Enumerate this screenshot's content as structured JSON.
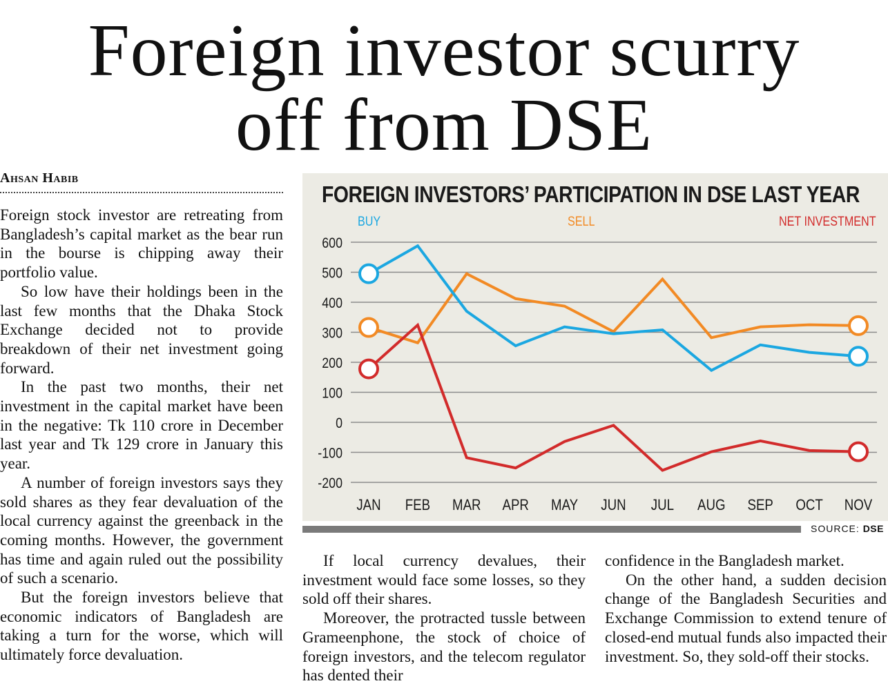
{
  "headline": {
    "line1": "Foreign investor scurry",
    "line2": "off from DSE"
  },
  "byline": "Ahsan Habib",
  "columns": {
    "col1": [
      "Foreign stock investor are retreating from Bangladesh’s capital market as the bear run in the bourse is chipping away their portfolio value.",
      "So low have their holdings been in the last few months that the Dhaka Stock Exchange decided not to provide breakdown of their net investment going forward.",
      "In the past two months, their net investment in the capital market have been in the negative: Tk 110 crore in December last year and Tk 129 crore in January this year.",
      "A number of foreign investors says they sold shares as they fear devaluation of the local currency against the greenback in the coming months. However, the government has time and again ruled out the possibility of such a scenario.",
      "But the foreign investors believe that economic indicators of Bangladesh are taking a turn for the worse, which will ultimately force devaluation."
    ],
    "col2": [
      "If local currency devalues, their investment would face some losses, so they sold off their shares.",
      "Moreover, the protracted tussle between Grameenphone, the stock of choice of foreign investors, and the telecom regulator has dented their"
    ],
    "col3": [
      "confidence in the Bangladesh market.",
      "On the other hand, a sudden decision change of the Bangladesh Securities and Exchange Commission to extend tenure of closed-end mutual funds also impacted their investment. So, they sold-off their stocks."
    ]
  },
  "source": {
    "label": "SOURCE:",
    "name": "DSE"
  },
  "colors": {
    "buy": "#1ba7e1",
    "sell": "#f28a24",
    "net": "#d22b2b",
    "panel": "#ecebe4",
    "grid": "#8c8c8c"
  },
  "chart_data": {
    "type": "line",
    "title": "FOREIGN INVESTORS’ PARTICIPATION IN DSE LAST YEAR",
    "categories": [
      "JAN",
      "FEB",
      "MAR",
      "APR",
      "MAY",
      "JUN",
      "JUL",
      "AUG",
      "SEP",
      "OCT",
      "NOV"
    ],
    "yticks": [
      600,
      500,
      400,
      300,
      200,
      100,
      0,
      -100,
      -200
    ],
    "ylim": [
      -200,
      600
    ],
    "grid": true,
    "legend_placement": "top",
    "series": [
      {
        "name": "BUY",
        "color": "#1ba7e1",
        "values": [
          495,
          588,
          370,
          255,
          318,
          295,
          308,
          173,
          258,
          233,
          220
        ]
      },
      {
        "name": "SELL",
        "color": "#f28a24",
        "values": [
          316,
          265,
          495,
          412,
          387,
          302,
          477,
          282,
          318,
          325,
          322
        ]
      },
      {
        "name": "NET INVESTMENT",
        "color": "#d22b2b",
        "values": [
          178,
          324,
          -118,
          -152,
          -64,
          -10,
          -160,
          -98,
          -62,
          -94,
          -98
        ]
      }
    ]
  }
}
